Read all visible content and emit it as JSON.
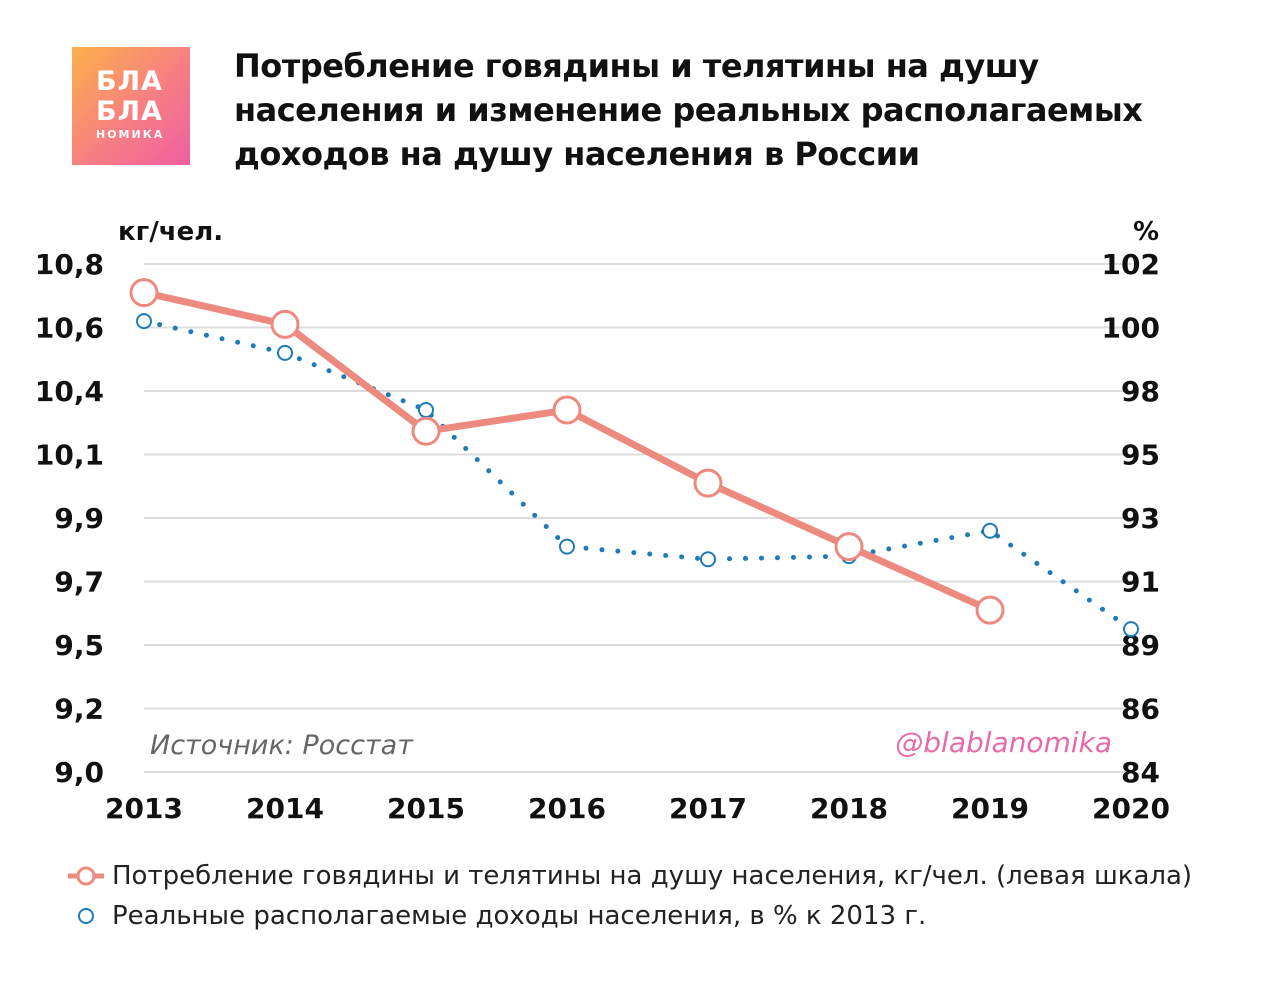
{
  "logo": {
    "line1": "БЛА",
    "line2": "БЛА",
    "line3": "НОМИКА"
  },
  "title": "Потребление говядины и телятины на душу населения и изменение реальных располагаемых доходов на душу населения в России",
  "source_note": "Источник: Росстат",
  "watermark": "@blablanomika",
  "colors": {
    "beef": "#ec8a80",
    "income": "#1f7ab8",
    "grid": "#dcdcdc",
    "watermark": "#e86aa8",
    "source": "#666666"
  },
  "chart_data": {
    "type": "line",
    "x": [
      "2013",
      "2014",
      "2015",
      "2016",
      "2017",
      "2018",
      "2019",
      "2020"
    ],
    "left_axis": {
      "unit_label": "кг/чел.",
      "ticks": [
        "10,8",
        "10,6",
        "10,4",
        "10,1",
        "9,9",
        "9,7",
        "9,5",
        "9,2",
        "9,0"
      ],
      "range": [
        9.0,
        10.8
      ]
    },
    "right_axis": {
      "unit_label": "%",
      "ticks": [
        "102",
        "100",
        "98",
        "95",
        "93",
        "91",
        "89",
        "86",
        "84"
      ],
      "range": [
        84,
        102
      ]
    },
    "grid": true,
    "series": [
      {
        "name": "Потребление говядины и телятины на душу населения, кг/чел. (левая шкала)",
        "axis": "left",
        "style": "solid-line-open-circles",
        "values": [
          10.71,
          10.61,
          10.21,
          10.31,
          10.01,
          9.81,
          9.61,
          null
        ]
      },
      {
        "name": "Реальные располагаемые доходы населения, в % к 2013 г.",
        "axis": "right",
        "style": "dotted-line-open-circles",
        "values": [
          100.2,
          99.2,
          97.1,
          92.1,
          91.7,
          91.8,
          92.6,
          89.5
        ]
      }
    ]
  }
}
